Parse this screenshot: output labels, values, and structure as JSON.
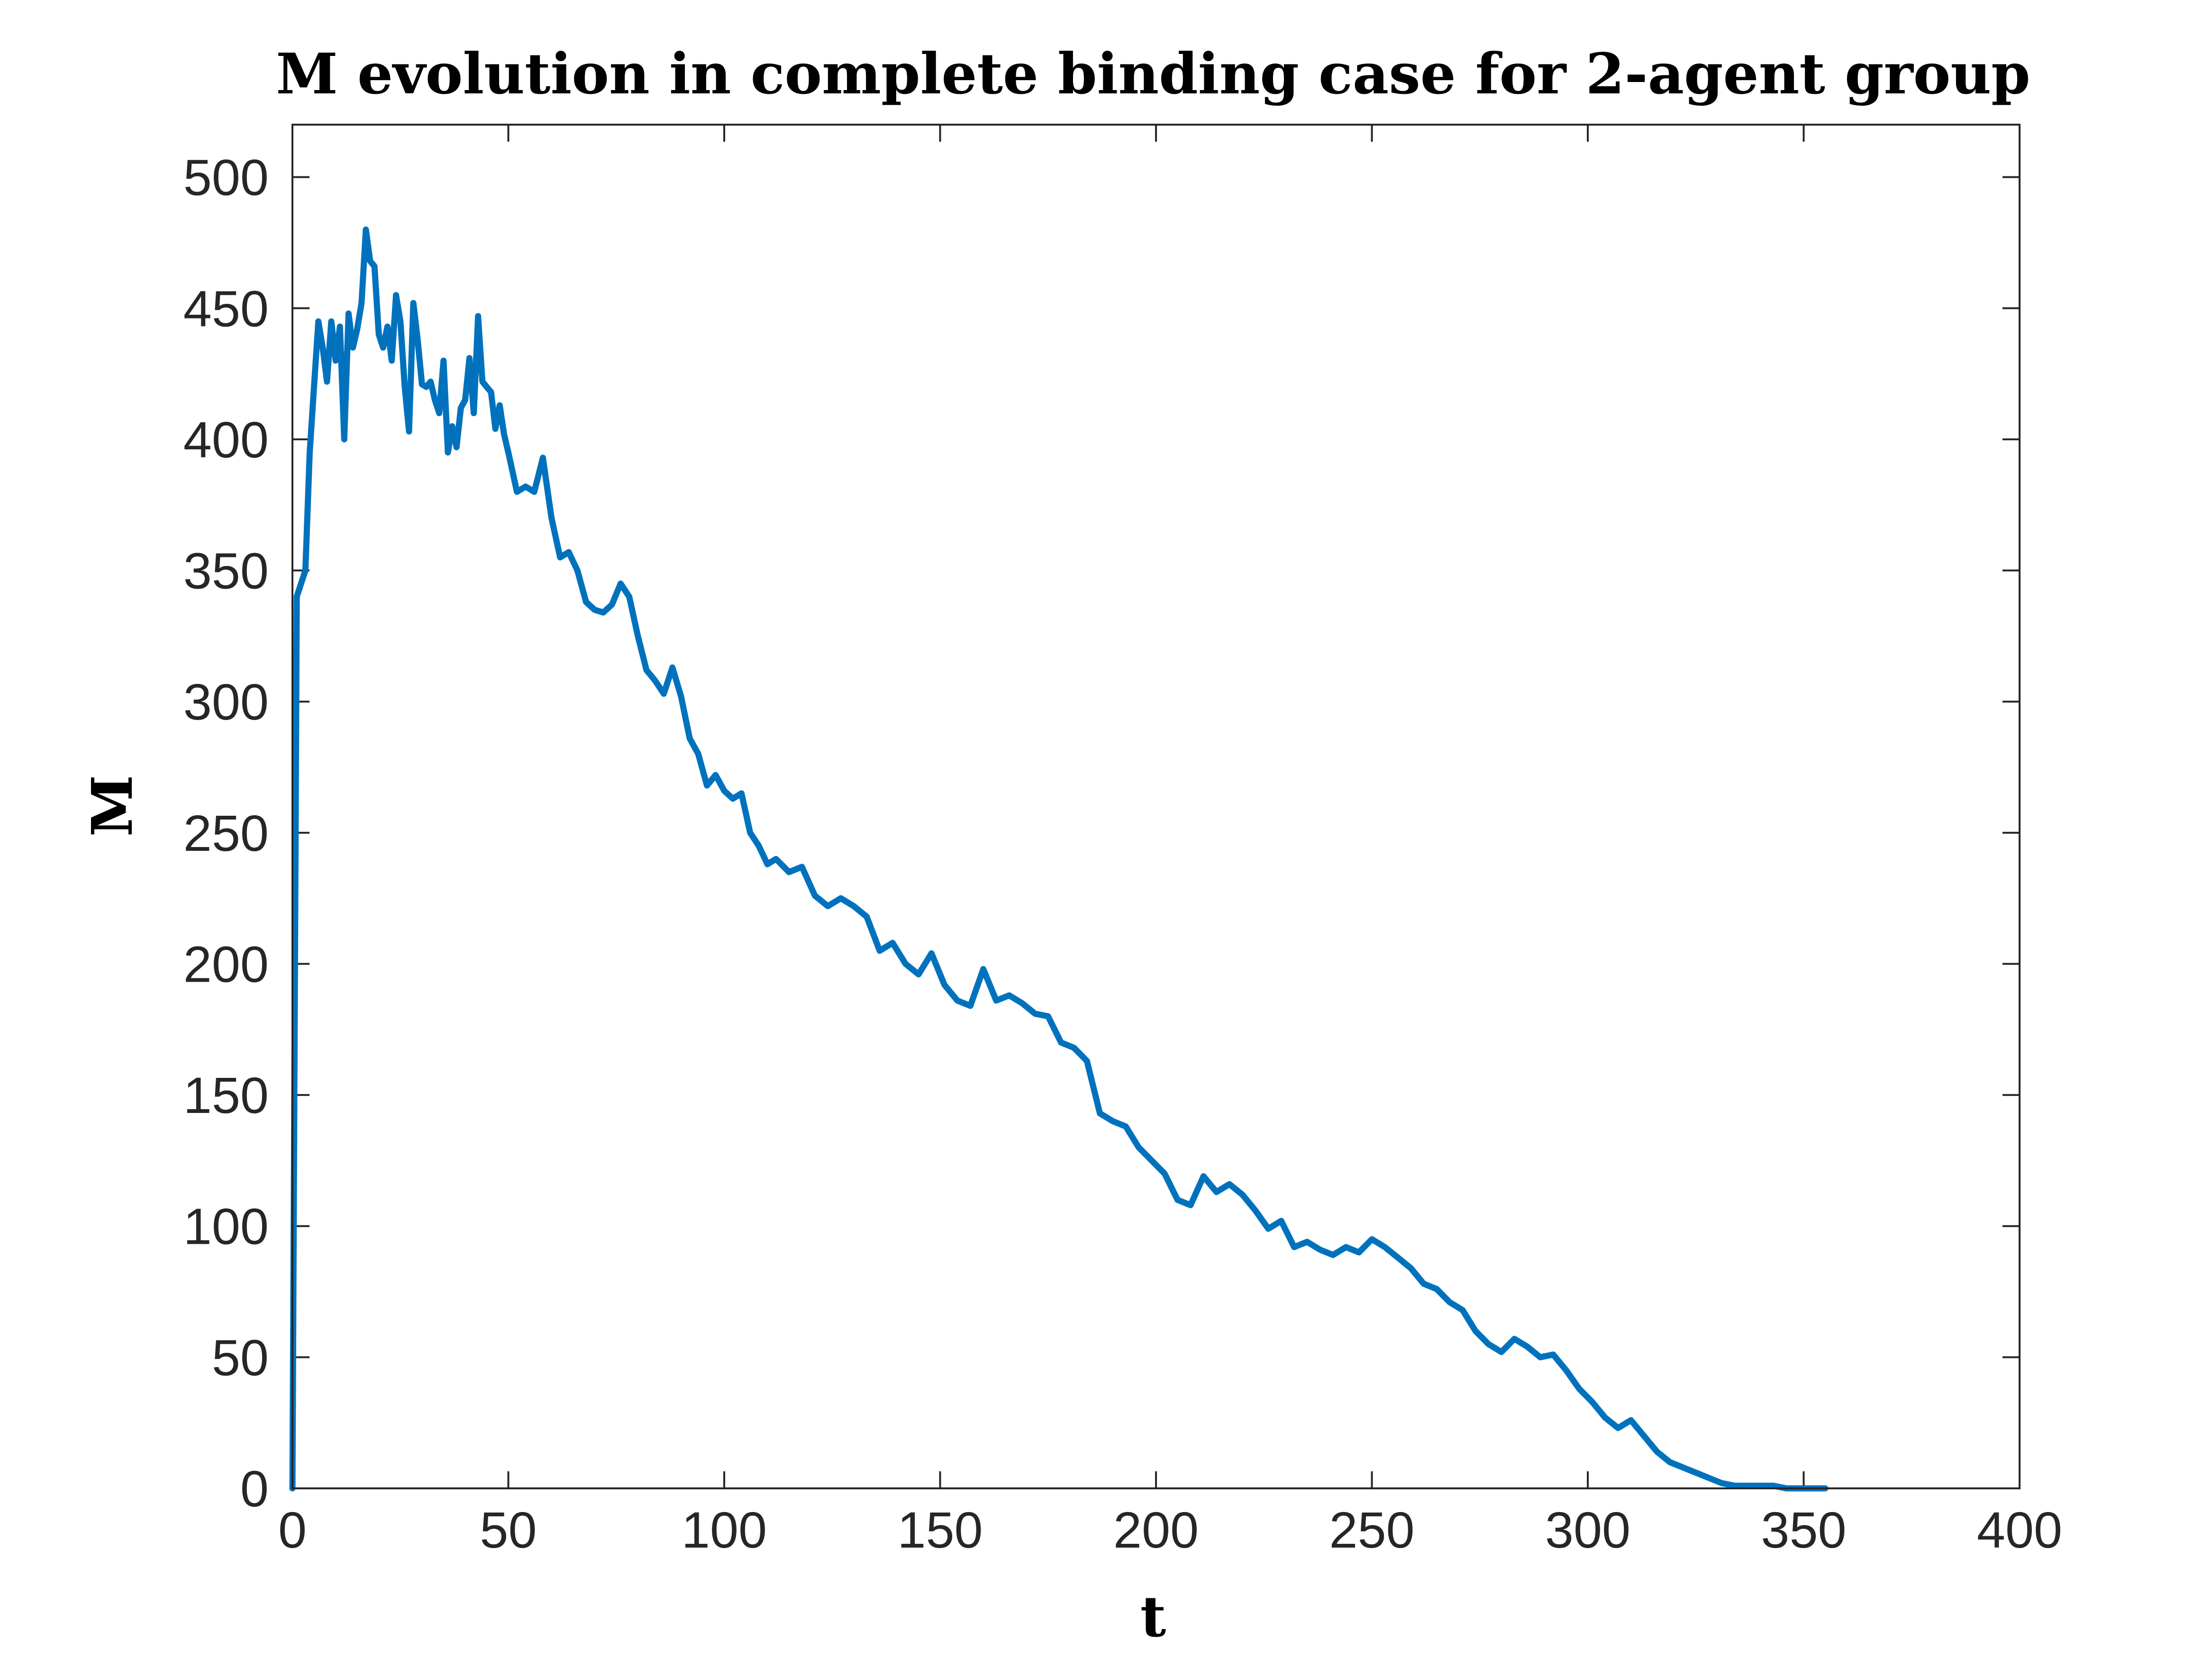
{
  "chart_data": {
    "type": "line",
    "title": "M evolution in complete binding case for 2-agent group",
    "xlabel": "t",
    "ylabel": "M",
    "xlim": [
      0,
      400
    ],
    "ylim": [
      0,
      520
    ],
    "xticks": [
      "0",
      "50",
      "100",
      "150",
      "200",
      "250",
      "300",
      "350",
      "400"
    ],
    "yticks": [
      "0",
      "50",
      "100",
      "150",
      "200",
      "250",
      "300",
      "350",
      "400",
      "450",
      "500"
    ],
    "grid": false,
    "legend": "none",
    "line_color": "#0072BD",
    "series": [
      {
        "x": [
          0,
          1,
          3,
          4,
          5,
          6,
          7,
          8,
          9,
          10,
          11,
          12,
          13,
          14,
          15,
          16,
          17,
          18,
          19,
          20,
          21,
          22,
          23,
          24,
          25,
          26,
          27,
          28,
          29,
          30,
          31,
          32,
          33,
          34,
          35,
          36,
          37,
          38,
          39,
          40,
          41,
          42,
          43,
          44,
          45,
          46,
          47,
          48,
          49,
          50,
          52,
          54,
          56,
          58,
          60,
          62,
          64,
          66,
          68,
          70,
          72,
          74,
          76,
          78,
          80,
          82,
          84,
          86,
          88,
          90,
          92,
          94,
          96,
          98,
          100,
          102,
          104,
          106,
          108,
          110,
          112,
          115,
          118,
          121,
          124,
          127,
          130,
          133,
          136,
          139,
          142,
          145,
          148,
          151,
          154,
          157,
          160,
          163,
          166,
          169,
          172,
          175,
          178,
          181,
          184,
          187,
          190,
          193,
          196,
          199,
          202,
          205,
          208,
          211,
          214,
          217,
          220,
          223,
          226,
          229,
          232,
          235,
          238,
          241,
          244,
          247,
          250,
          253,
          256,
          259,
          262,
          265,
          268,
          271,
          274,
          277,
          280,
          283,
          286,
          289,
          292,
          295,
          298,
          301,
          304,
          307,
          310,
          313,
          316,
          319,
          322,
          325,
          328,
          331,
          334,
          337,
          340,
          343,
          346,
          349,
          352,
          355
        ],
        "y": [
          0,
          340,
          350,
          395,
          420,
          445,
          435,
          422,
          445,
          430,
          443,
          400,
          448,
          435,
          442,
          452,
          480,
          468,
          466,
          440,
          435,
          443,
          430,
          455,
          445,
          420,
          403,
          452,
          438,
          421,
          420,
          422,
          415,
          410,
          430,
          395,
          405,
          397,
          412,
          415,
          431,
          410,
          447,
          422,
          420,
          418,
          404,
          413,
          402,
          395,
          380,
          382,
          380,
          393,
          370,
          355,
          357,
          350,
          338,
          335,
          334,
          337,
          345,
          340,
          325,
          312,
          308,
          303,
          313,
          302,
          286,
          280,
          268,
          272,
          266,
          263,
          265,
          250,
          245,
          238,
          240,
          235,
          237,
          226,
          222,
          225,
          222,
          218,
          205,
          208,
          200,
          196,
          204,
          192,
          186,
          184,
          198,
          186,
          188,
          185,
          181,
          180,
          170,
          168,
          163,
          143,
          140,
          138,
          130,
          125,
          120,
          110,
          108,
          119,
          113,
          116,
          112,
          106,
          99,
          102,
          92,
          94,
          91,
          89,
          92,
          90,
          95,
          92,
          88,
          84,
          78,
          76,
          71,
          68,
          60,
          55,
          52,
          57,
          54,
          50,
          51,
          45,
          38,
          33,
          27,
          23,
          26,
          20,
          14,
          10,
          8,
          6,
          4,
          2,
          1,
          1,
          1,
          1,
          0,
          0,
          0,
          0
        ]
      }
    ]
  }
}
